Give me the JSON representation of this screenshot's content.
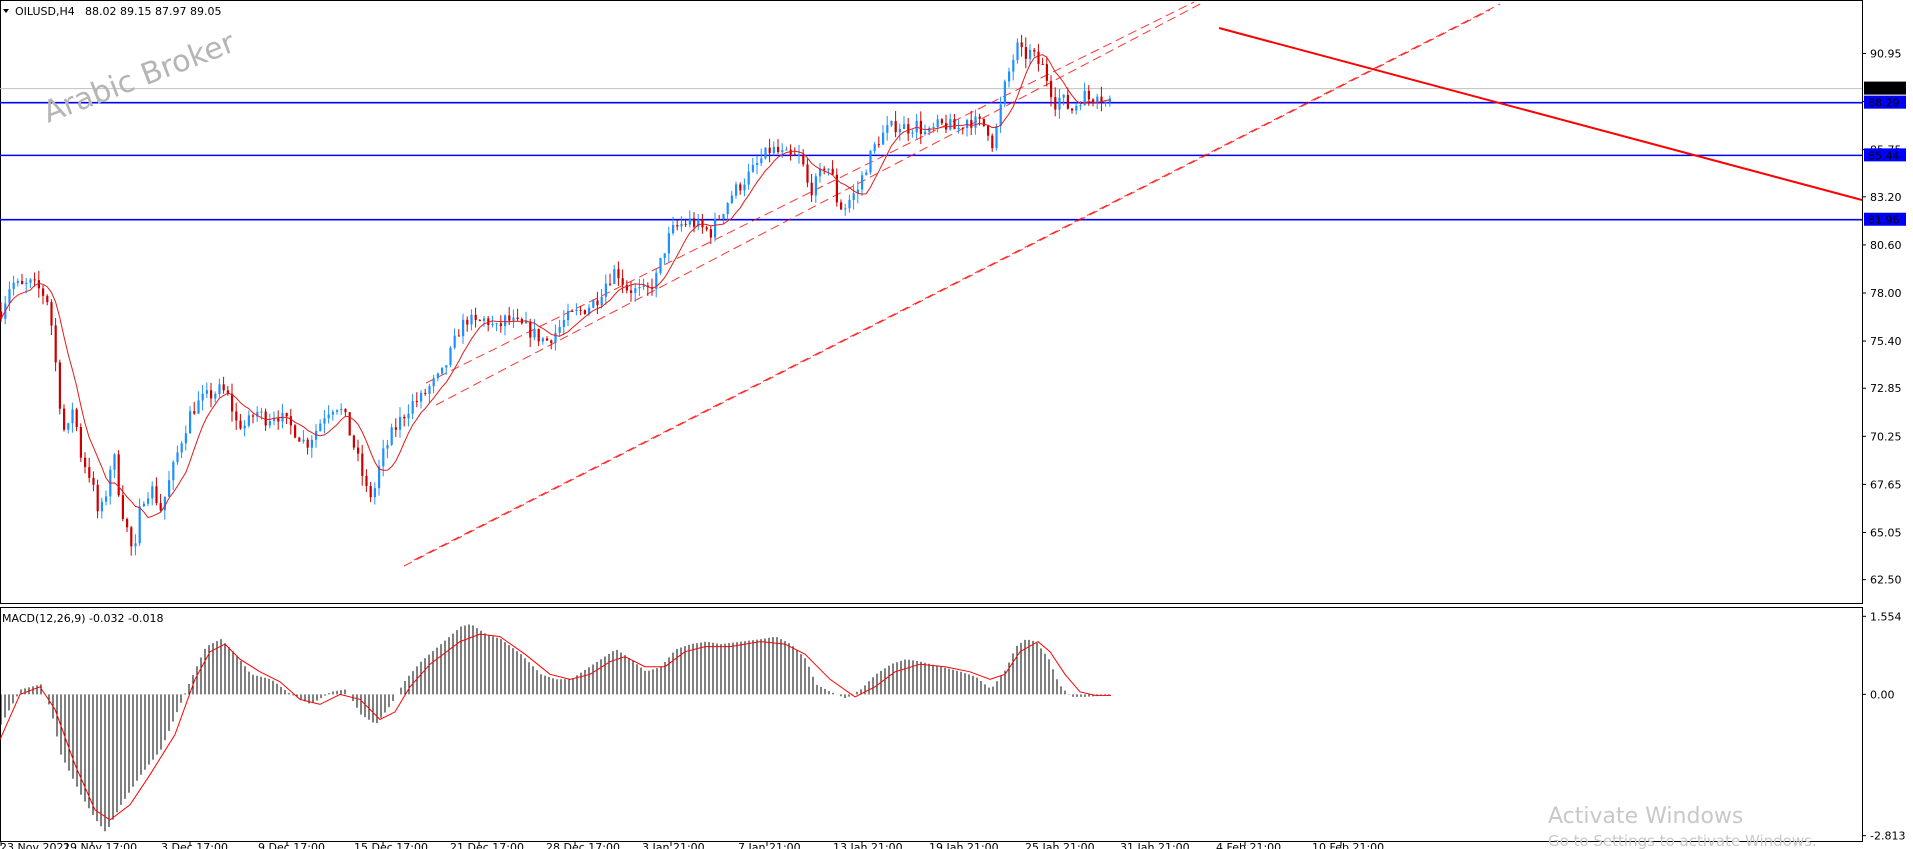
{
  "chart_data": [
    {
      "type": "candlestick",
      "symbol_header": "OILUSD,H4",
      "ohlc_header": "88.02 89.15 87.97 89.05",
      "watermark": "Arabic Broker",
      "y_ticks": [
        "90.95",
        "88.35",
        "85.75",
        "83.20",
        "80.60",
        "78.00",
        "75.40",
        "72.85",
        "70.25",
        "67.65",
        "65.05",
        "62.50"
      ],
      "ylim": [
        61.4,
        93.3
      ],
      "current_price": "89.05",
      "horizontal_levels": [
        {
          "label": "88.29",
          "value": 88.29
        },
        {
          "label": "85.44",
          "value": 85.44
        },
        {
          "label": "81.96",
          "value": 81.96
        }
      ],
      "x_ticks": [
        "23 Nov 2021",
        "29 Nov 17:00",
        "3 Dec 17:00",
        "9 Dec 17:00",
        "15 Dec 17:00",
        "21 Dec 17:00",
        "28 Dec 17:00",
        "3 Jan 21:00",
        "7 Jan 21:00",
        "13 Jan 21:00",
        "19 Jan 21:00",
        "25 Jan 21:00",
        "31 Jan 21:00",
        "4 Feb 21:00",
        "10 Feb 21:00"
      ],
      "close_path": [
        [
          0,
          77.0
        ],
        [
          10,
          78.6
        ],
        [
          20,
          78.3
        ],
        [
          30,
          78.5
        ],
        [
          40,
          78.1
        ],
        [
          48,
          77.5
        ],
        [
          55,
          74.0
        ],
        [
          60,
          71.5
        ],
        [
          65,
          70.0
        ],
        [
          72,
          72.0
        ],
        [
          80,
          69.2
        ],
        [
          90,
          68.0
        ],
        [
          98,
          65.8
        ],
        [
          105,
          67.2
        ],
        [
          112,
          69.5
        ],
        [
          120,
          66.5
        ],
        [
          128,
          64.8
        ],
        [
          133,
          63.5
        ],
        [
          140,
          66.8
        ],
        [
          150,
          67.5
        ],
        [
          160,
          66.3
        ],
        [
          172,
          68.5
        ],
        [
          180,
          70.0
        ],
        [
          190,
          71.6
        ],
        [
          200,
          72.2
        ],
        [
          210,
          72.5
        ],
        [
          220,
          72.8
        ],
        [
          228,
          72.3
        ],
        [
          235,
          71.0
        ],
        [
          245,
          70.8
        ],
        [
          255,
          71.6
        ],
        [
          265,
          71.2
        ],
        [
          275,
          71.5
        ],
        [
          285,
          71.0
        ],
        [
          295,
          70.5
        ],
        [
          305,
          69.8
        ],
        [
          315,
          70.6
        ],
        [
          325,
          71.6
        ],
        [
          335,
          72.0
        ],
        [
          343,
          71.4
        ],
        [
          350,
          70.2
        ],
        [
          358,
          68.8
        ],
        [
          366,
          67.2
        ],
        [
          372,
          67.0
        ],
        [
          380,
          69.0
        ],
        [
          390,
          70.3
        ],
        [
          400,
          71.2
        ],
        [
          410,
          72.0
        ],
        [
          420,
          72.3
        ],
        [
          430,
          73.0
        ],
        [
          440,
          73.5
        ],
        [
          450,
          74.8
        ],
        [
          458,
          76.0
        ],
        [
          466,
          76.6
        ],
        [
          475,
          76.3
        ],
        [
          485,
          76.6
        ],
        [
          495,
          76.0
        ],
        [
          505,
          76.6
        ],
        [
          515,
          76.3
        ],
        [
          525,
          76.1
        ],
        [
          535,
          75.7
        ],
        [
          545,
          75.4
        ],
        [
          555,
          75.9
        ],
        [
          565,
          76.6
        ],
        [
          575,
          76.9
        ],
        [
          585,
          77.2
        ],
        [
          595,
          77.6
        ],
        [
          605,
          78.6
        ],
        [
          615,
          79.3
        ],
        [
          625,
          78.3
        ],
        [
          635,
          78.1
        ],
        [
          645,
          78.0
        ],
        [
          655,
          78.8
        ],
        [
          663,
          80.3
        ],
        [
          670,
          81.3
        ],
        [
          680,
          81.7
        ],
        [
          690,
          81.9
        ],
        [
          700,
          81.5
        ],
        [
          710,
          81.3
        ],
        [
          720,
          82.3
        ],
        [
          730,
          83.3
        ],
        [
          740,
          83.9
        ],
        [
          750,
          84.5
        ],
        [
          760,
          85.2
        ],
        [
          770,
          85.8
        ],
        [
          780,
          85.5
        ],
        [
          790,
          85.3
        ],
        [
          800,
          85.3
        ],
        [
          808,
          83.5
        ],
        [
          816,
          84.0
        ],
        [
          824,
          85.0
        ],
        [
          830,
          84.6
        ],
        [
          836,
          83.0
        ],
        [
          842,
          82.5
        ],
        [
          848,
          83.0
        ],
        [
          856,
          83.5
        ],
        [
          866,
          85.0
        ],
        [
          876,
          86.2
        ],
        [
          886,
          86.8
        ],
        [
          896,
          87.1
        ],
        [
          906,
          86.9
        ],
        [
          916,
          87.1
        ],
        [
          926,
          86.5
        ],
        [
          936,
          87.0
        ],
        [
          946,
          87.1
        ],
        [
          956,
          86.8
        ],
        [
          966,
          87.4
        ],
        [
          976,
          87.2
        ],
        [
          986,
          87.0
        ],
        [
          992,
          86.0
        ],
        [
          998,
          87.6
        ],
        [
          1004,
          89.2
        ],
        [
          1010,
          90.3
        ],
        [
          1016,
          91.3
        ],
        [
          1022,
          90.8
        ],
        [
          1030,
          91.0
        ],
        [
          1036,
          90.5
        ],
        [
          1042,
          90.2
        ],
        [
          1048,
          89.3
        ],
        [
          1054,
          88.3
        ],
        [
          1060,
          88.6
        ],
        [
          1066,
          88.1
        ],
        [
          1072,
          87.9
        ],
        [
          1078,
          88.5
        ],
        [
          1084,
          88.7
        ],
        [
          1090,
          88.4
        ],
        [
          1096,
          89.0
        ],
        [
          1102,
          88.4
        ],
        [
          1108,
          88.1
        ],
        [
          1111,
          89.05
        ]
      ],
      "indicators": [
        {
          "name": "MACD(12,26,9) -0.032 -0.018",
          "y_ticks": [
            "1.554",
            "0.00",
            "-2.813"
          ],
          "ylim": [
            -2.9,
            1.62
          ],
          "histogram_path": [
            [
              0,
              -0.6
            ],
            [
              20,
              0.1
            ],
            [
              40,
              0.2
            ],
            [
              50,
              -0.3
            ],
            [
              60,
              -1.2
            ],
            [
              80,
              -2.0
            ],
            [
              95,
              -2.5
            ],
            [
              105,
              -2.75
            ],
            [
              120,
              -2.2
            ],
            [
              140,
              -1.6
            ],
            [
              160,
              -1.1
            ],
            [
              175,
              -0.4
            ],
            [
              190,
              0.3
            ],
            [
              205,
              0.95
            ],
            [
              220,
              1.1
            ],
            [
              235,
              0.8
            ],
            [
              250,
              0.4
            ],
            [
              270,
              0.3
            ],
            [
              290,
              0.0
            ],
            [
              310,
              -0.2
            ],
            [
              330,
              0.05
            ],
            [
              345,
              0.1
            ],
            [
              360,
              -0.4
            ],
            [
              375,
              -0.6
            ],
            [
              390,
              -0.2
            ],
            [
              405,
              0.3
            ],
            [
              420,
              0.65
            ],
            [
              440,
              1.0
            ],
            [
              460,
              1.35
            ],
            [
              470,
              1.4
            ],
            [
              485,
              1.2
            ],
            [
              500,
              1.1
            ],
            [
              520,
              0.8
            ],
            [
              540,
              0.4
            ],
            [
              555,
              0.3
            ],
            [
              570,
              0.3
            ],
            [
              585,
              0.5
            ],
            [
              600,
              0.7
            ],
            [
              615,
              0.9
            ],
            [
              630,
              0.7
            ],
            [
              645,
              0.45
            ],
            [
              660,
              0.55
            ],
            [
              675,
              0.9
            ],
            [
              690,
              1.0
            ],
            [
              705,
              1.05
            ],
            [
              720,
              1.0
            ],
            [
              740,
              1.05
            ],
            [
              760,
              1.1
            ],
            [
              775,
              1.15
            ],
            [
              790,
              1.0
            ],
            [
              805,
              0.7
            ],
            [
              815,
              0.2
            ],
            [
              830,
              0.05
            ],
            [
              845,
              -0.08
            ],
            [
              860,
              0.1
            ],
            [
              875,
              0.4
            ],
            [
              890,
              0.6
            ],
            [
              905,
              0.7
            ],
            [
              920,
              0.65
            ],
            [
              940,
              0.55
            ],
            [
              960,
              0.45
            ],
            [
              975,
              0.35
            ],
            [
              990,
              0.1
            ],
            [
              1005,
              0.5
            ],
            [
              1015,
              0.95
            ],
            [
              1025,
              1.1
            ],
            [
              1035,
              1.05
            ],
            [
              1048,
              0.7
            ],
            [
              1058,
              0.2
            ],
            [
              1070,
              -0.05
            ],
            [
              1085,
              -0.05
            ],
            [
              1100,
              -0.03
            ],
            [
              1111,
              -0.03
            ]
          ],
          "signal_path": [
            [
              0,
              -0.9
            ],
            [
              20,
              0.0
            ],
            [
              40,
              0.15
            ],
            [
              55,
              -0.3
            ],
            [
              75,
              -1.4
            ],
            [
              95,
              -2.3
            ],
            [
              110,
              -2.5
            ],
            [
              130,
              -2.2
            ],
            [
              150,
              -1.6
            ],
            [
              175,
              -0.8
            ],
            [
              195,
              0.3
            ],
            [
              210,
              0.85
            ],
            [
              225,
              1.0
            ],
            [
              240,
              0.7
            ],
            [
              260,
              0.45
            ],
            [
              280,
              0.25
            ],
            [
              300,
              -0.1
            ],
            [
              320,
              -0.2
            ],
            [
              340,
              0.0
            ],
            [
              360,
              -0.1
            ],
            [
              380,
              -0.5
            ],
            [
              395,
              -0.35
            ],
            [
              410,
              0.15
            ],
            [
              430,
              0.6
            ],
            [
              460,
              1.05
            ],
            [
              480,
              1.2
            ],
            [
              500,
              1.15
            ],
            [
              525,
              0.8
            ],
            [
              550,
              0.4
            ],
            [
              570,
              0.3
            ],
            [
              590,
              0.4
            ],
            [
              610,
              0.65
            ],
            [
              625,
              0.75
            ],
            [
              645,
              0.55
            ],
            [
              665,
              0.55
            ],
            [
              685,
              0.85
            ],
            [
              705,
              0.95
            ],
            [
              730,
              0.95
            ],
            [
              760,
              1.05
            ],
            [
              785,
              1.0
            ],
            [
              805,
              0.8
            ],
            [
              830,
              0.3
            ],
            [
              855,
              -0.05
            ],
            [
              875,
              0.15
            ],
            [
              895,
              0.45
            ],
            [
              920,
              0.6
            ],
            [
              945,
              0.55
            ],
            [
              970,
              0.45
            ],
            [
              990,
              0.3
            ],
            [
              1005,
              0.4
            ],
            [
              1020,
              0.85
            ],
            [
              1038,
              1.05
            ],
            [
              1050,
              0.85
            ],
            [
              1065,
              0.4
            ],
            [
              1080,
              0.05
            ],
            [
              1095,
              -0.02
            ],
            [
              1111,
              -0.02
            ]
          ]
        }
      ]
    }
  ],
  "os_watermark": {
    "line1": "Activate Windows",
    "line2": "Go to Settings to activate Windows."
  },
  "colors": {
    "bull": "#1e90ff",
    "bear": "#cc0000",
    "ma": "#e41b1b",
    "trend": "#ff0000",
    "level": "#0000ff",
    "macd_hist": "#000000",
    "signal": "#ff0000"
  }
}
